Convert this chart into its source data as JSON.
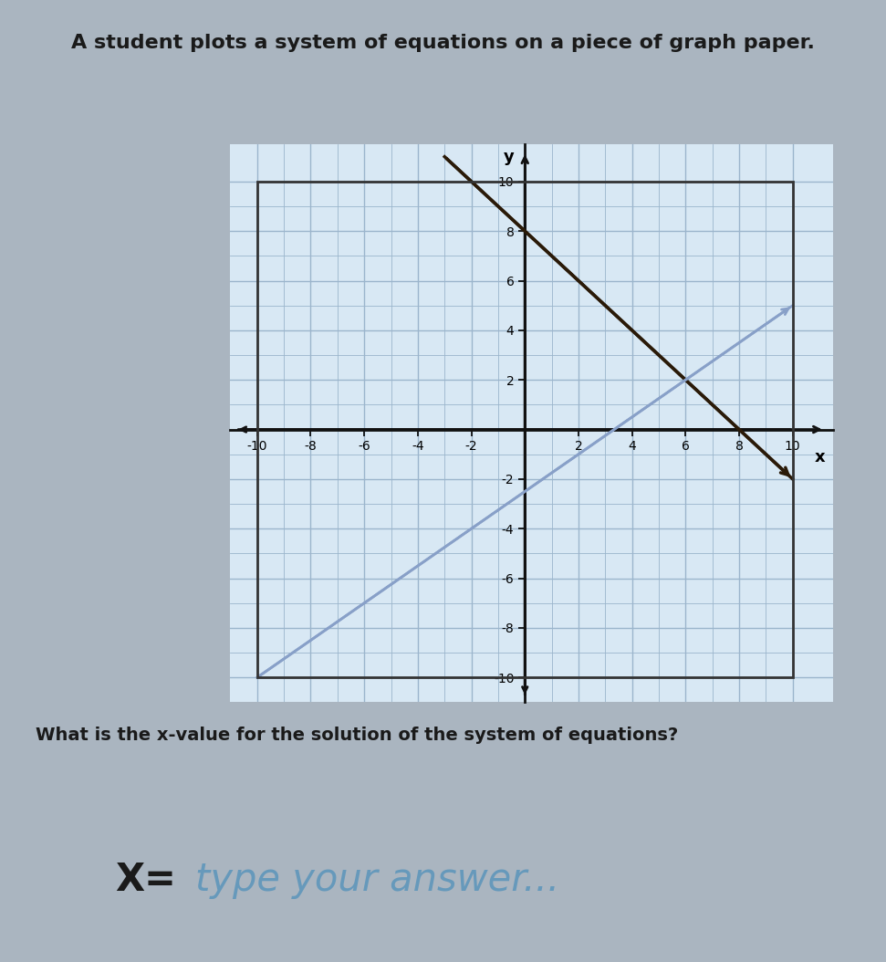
{
  "title": "A student plots a system of equations on a piece of graph paper.",
  "question": "What is the x-value for the solution of the system of equations?",
  "answer_prompt": "X=",
  "answer_placeholder": "type your answer...",
  "bg_color": "#aab5c0",
  "graph_bg_color": "#d8e8f4",
  "grid_minor_color": "#9bb5cc",
  "grid_major_color": "#9bb5cc",
  "axis_color": "#111111",
  "line1_color": "#2a1a08",
  "line2_color": "#88a0c8",
  "line1_x": [
    -3,
    10
  ],
  "line1_y": [
    11,
    -2
  ],
  "line2_x": [
    -10,
    10
  ],
  "line2_y": [
    -10,
    5
  ],
  "xlim": [
    -11,
    11.5
  ],
  "ylim": [
    -11,
    11.5
  ],
  "xticks": [
    -10,
    -8,
    -6,
    -4,
    -2,
    0,
    2,
    4,
    6,
    8,
    10
  ],
  "yticks": [
    -10,
    -8,
    -6,
    -4,
    -2,
    0,
    2,
    4,
    6,
    8,
    10
  ],
  "xlabel": "x",
  "ylabel": "y",
  "title_fontsize": 16,
  "tick_fontsize": 11,
  "question_fontsize": 14,
  "answer_fontsize": 30,
  "title_color": "#1a1a1a",
  "question_color": "#1a1a1a",
  "answer_box_bg": "#c8d4de",
  "answer_box_border": "#b0bcc8",
  "answer_color": "#1a1a1a",
  "placeholder_color": "#6699bb"
}
